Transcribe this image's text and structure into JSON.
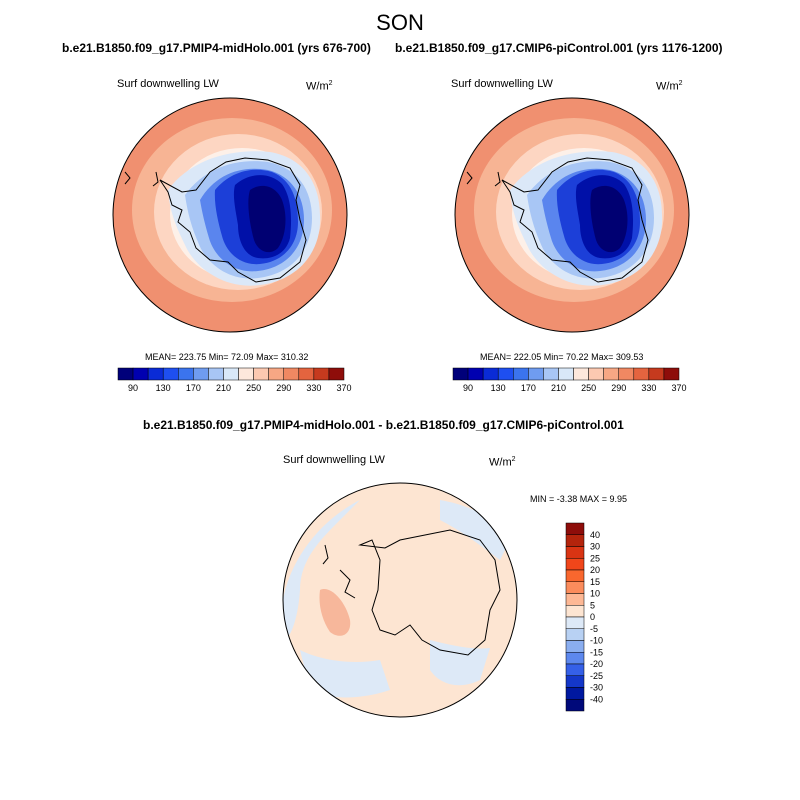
{
  "season": "SON",
  "panels": [
    {
      "run_title": "b.e21.B1850.f09_g17.PMIP4-midHolo.001 (yrs 676-700)",
      "variable": "Surf downwelling LW",
      "units_base": "W/m",
      "units_exp": "2",
      "stats": "MEAN= 223.75   Min=  72.09   Max= 310.32"
    },
    {
      "run_title": "b.e21.B1850.f09_g17.CMIP6-piControl.001 (yrs 1176-1200)",
      "variable": "Surf downwelling LW",
      "units_base": "W/m",
      "units_exp": "2",
      "stats": "MEAN= 222.05   Min=  70.22   Max= 309.53"
    }
  ],
  "abs_colorbar": {
    "colors": [
      "#00007a",
      "#0000b0",
      "#0a2bd6",
      "#1e4ff0",
      "#3b74ee",
      "#6f9cf0",
      "#a8c6f5",
      "#d9e8f8",
      "#fde8dc",
      "#fcc9b1",
      "#f7a784",
      "#f08862",
      "#e4643f",
      "#c63a1e",
      "#8e0d0a"
    ],
    "ticks": [
      "90",
      "130",
      "170",
      "210",
      "250",
      "290",
      "330",
      "370"
    ]
  },
  "diff": {
    "title": "b.e21.B1850.f09_g17.PMIP4-midHolo.001 - b.e21.B1850.f09_g17.CMIP6-piControl.001",
    "variable": "Surf downwelling LW",
    "units_base": "W/m",
    "units_exp": "2",
    "minmax": "MIN =  -3.38 MAX =   9.95"
  },
  "diff_colorbar": {
    "colors": [
      "#8e0d0a",
      "#b4240c",
      "#d93413",
      "#f0461a",
      "#f9672e",
      "#fb8c5c",
      "#fdb895",
      "#fde5d2",
      "#dde9f7",
      "#b8d1f3",
      "#8aaef0",
      "#5d88ee",
      "#3560e8",
      "#1437c9",
      "#0018a0",
      "#00097a"
    ],
    "ticks": [
      "40",
      "30",
      "25",
      "20",
      "15",
      "10",
      "5",
      "0",
      "-5",
      "-10",
      "-15",
      "-20",
      "-25",
      "-30",
      "-40"
    ]
  },
  "map_colors": {
    "coast": "#000000",
    "globe_border": "#000000"
  }
}
